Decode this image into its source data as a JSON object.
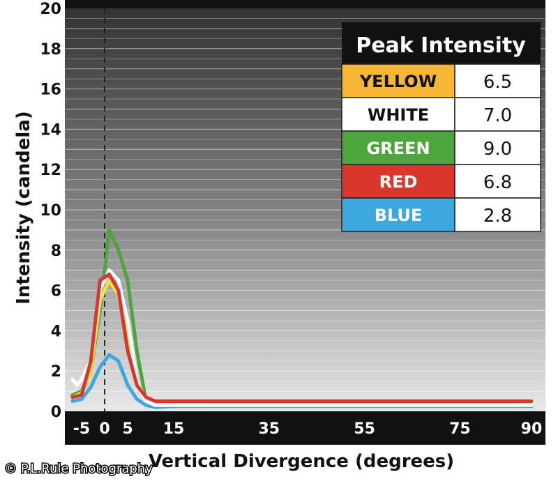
{
  "chart_data": {
    "type": "line",
    "xlabel": "Vertical Divergence (degrees)",
    "ylabel": "Intensity (candela)",
    "xlim": [
      -10,
      92
    ],
    "ylim": [
      0,
      20
    ],
    "x_ticks": [
      -5,
      0,
      5,
      15,
      35,
      55,
      75,
      90
    ],
    "y_ticks": [
      0,
      2,
      4,
      6,
      8,
      10,
      12,
      14,
      16,
      18,
      20
    ],
    "reference_line_x": 0,
    "grid": true,
    "legend": {
      "title": "Peak Intensity",
      "placement": "top-right",
      "rows": [
        {
          "name": "YELLOW",
          "value": "6.5",
          "color": "#f7b733",
          "text_color": "#111111"
        },
        {
          "name": "WHITE",
          "value": "7.0",
          "color": "#ffffff",
          "text_color": "#111111"
        },
        {
          "name": "GREEN",
          "value": "9.0",
          "color": "#4da63d",
          "text_color": "#ffffff"
        },
        {
          "name": "RED",
          "value": "6.8",
          "color": "#d9372b",
          "text_color": "#ffffff"
        },
        {
          "name": "BLUE",
          "value": "2.8",
          "color": "#3da7e0",
          "text_color": "#ffffff"
        }
      ]
    },
    "series": [
      {
        "name": "GREEN",
        "color": "#4da63d",
        "points": [
          [
            -7,
            0.8
          ],
          [
            -5,
            1.0
          ],
          [
            -3,
            2.0
          ],
          [
            -1,
            5.0
          ],
          [
            1,
            9.0
          ],
          [
            3,
            8.0
          ],
          [
            5,
            6.5
          ],
          [
            7,
            3.0
          ],
          [
            9,
            0.5
          ],
          [
            11,
            0.3
          ],
          [
            15,
            0.3
          ],
          [
            35,
            0.3
          ],
          [
            55,
            0.3
          ],
          [
            75,
            0.3
          ],
          [
            90,
            0.3
          ]
        ]
      },
      {
        "name": "BLUE",
        "color": "#3da7e0",
        "points": [
          [
            -7,
            0.5
          ],
          [
            -5,
            0.6
          ],
          [
            -3,
            1.2
          ],
          [
            -1,
            2.2
          ],
          [
            1,
            2.8
          ],
          [
            3,
            2.5
          ],
          [
            5,
            1.3
          ],
          [
            7,
            0.6
          ],
          [
            9,
            0.3
          ],
          [
            11,
            0.2
          ],
          [
            15,
            0.25
          ],
          [
            35,
            0.25
          ],
          [
            55,
            0.25
          ],
          [
            75,
            0.25
          ],
          [
            90,
            0.25
          ]
        ]
      },
      {
        "name": "YELLOW",
        "color": "#f4e243",
        "points": [
          [
            -7,
            0.7
          ],
          [
            -5,
            0.9
          ],
          [
            -3,
            2.0
          ],
          [
            -1,
            5.5
          ],
          [
            1,
            6.5
          ],
          [
            3,
            5.8
          ],
          [
            5,
            3.5
          ],
          [
            7,
            1.5
          ],
          [
            9,
            0.6
          ],
          [
            11,
            0.5
          ],
          [
            15,
            0.5
          ],
          [
            35,
            0.5
          ],
          [
            55,
            0.5
          ],
          [
            75,
            0.5
          ],
          [
            90,
            0.5
          ]
        ]
      },
      {
        "name": "WHITE",
        "color": "#ffffff",
        "points": [
          [
            -7,
            1.6
          ],
          [
            -6,
            1.3
          ],
          [
            -5,
            1.6
          ],
          [
            -3,
            2.5
          ],
          [
            -1,
            6.0
          ],
          [
            1,
            7.0
          ],
          [
            3,
            6.5
          ],
          [
            5,
            4.5
          ],
          [
            7,
            1.5
          ],
          [
            9,
            0.5
          ],
          [
            11,
            0.3
          ],
          [
            15,
            0.3
          ],
          [
            35,
            0.3
          ],
          [
            55,
            0.3
          ],
          [
            75,
            0.3
          ],
          [
            90,
            0.3
          ]
        ]
      },
      {
        "name": "RED",
        "color": "#d9372b",
        "points": [
          [
            -7,
            0.7
          ],
          [
            -5,
            0.8
          ],
          [
            -3,
            2.5
          ],
          [
            -1,
            6.5
          ],
          [
            1,
            6.8
          ],
          [
            3,
            6.0
          ],
          [
            5,
            3.0
          ],
          [
            7,
            1.3
          ],
          [
            9,
            0.7
          ],
          [
            11,
            0.5
          ],
          [
            15,
            0.5
          ],
          [
            35,
            0.5
          ],
          [
            55,
            0.5
          ],
          [
            75,
            0.5
          ],
          [
            90,
            0.5
          ]
        ]
      }
    ]
  },
  "copyright": "© P.L.Rule Photography"
}
